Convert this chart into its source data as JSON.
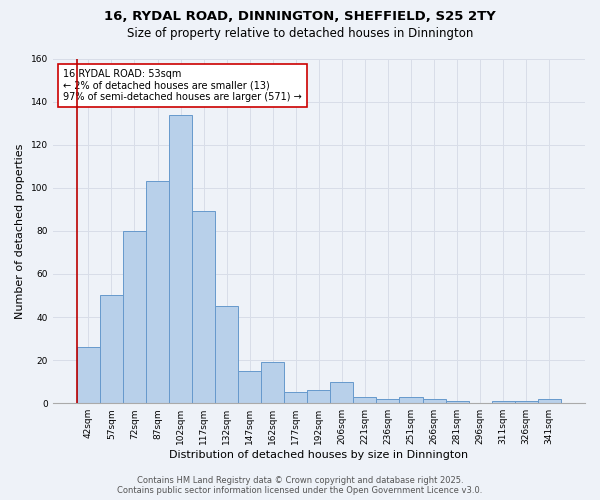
{
  "title_line1": "16, RYDAL ROAD, DINNINGTON, SHEFFIELD, S25 2TY",
  "title_line2": "Size of property relative to detached houses in Dinnington",
  "xlabel": "Distribution of detached houses by size in Dinnington",
  "ylabel": "Number of detached properties",
  "categories": [
    "42sqm",
    "57sqm",
    "72sqm",
    "87sqm",
    "102sqm",
    "117sqm",
    "132sqm",
    "147sqm",
    "162sqm",
    "177sqm",
    "192sqm",
    "206sqm",
    "221sqm",
    "236sqm",
    "251sqm",
    "266sqm",
    "281sqm",
    "296sqm",
    "311sqm",
    "326sqm",
    "341sqm"
  ],
  "values": [
    26,
    50,
    80,
    103,
    134,
    89,
    45,
    15,
    19,
    5,
    6,
    10,
    3,
    2,
    3,
    2,
    1,
    0,
    1,
    1,
    2
  ],
  "bar_color": "#b8d0ea",
  "bar_edge_color": "#6699cc",
  "vline_x_data": -0.5,
  "vline_color": "#bb0000",
  "annotation_text": "16 RYDAL ROAD: 53sqm\n← 2% of detached houses are smaller (13)\n97% of semi-detached houses are larger (571) →",
  "annotation_box_color": "#ffffff",
  "annotation_box_edge": "#cc0000",
  "ylim": [
    0,
    160
  ],
  "yticks": [
    0,
    20,
    40,
    60,
    80,
    100,
    120,
    140,
    160
  ],
  "footer_line1": "Contains HM Land Registry data © Crown copyright and database right 2025.",
  "footer_line2": "Contains public sector information licensed under the Open Government Licence v3.0.",
  "bg_color": "#eef2f8",
  "grid_color": "#d8dde8",
  "title_fontsize": 9.5,
  "subtitle_fontsize": 8.5,
  "ylabel_fontsize": 8,
  "xlabel_fontsize": 8,
  "tick_fontsize": 6.5,
  "footer_fontsize": 6,
  "annot_fontsize": 7
}
